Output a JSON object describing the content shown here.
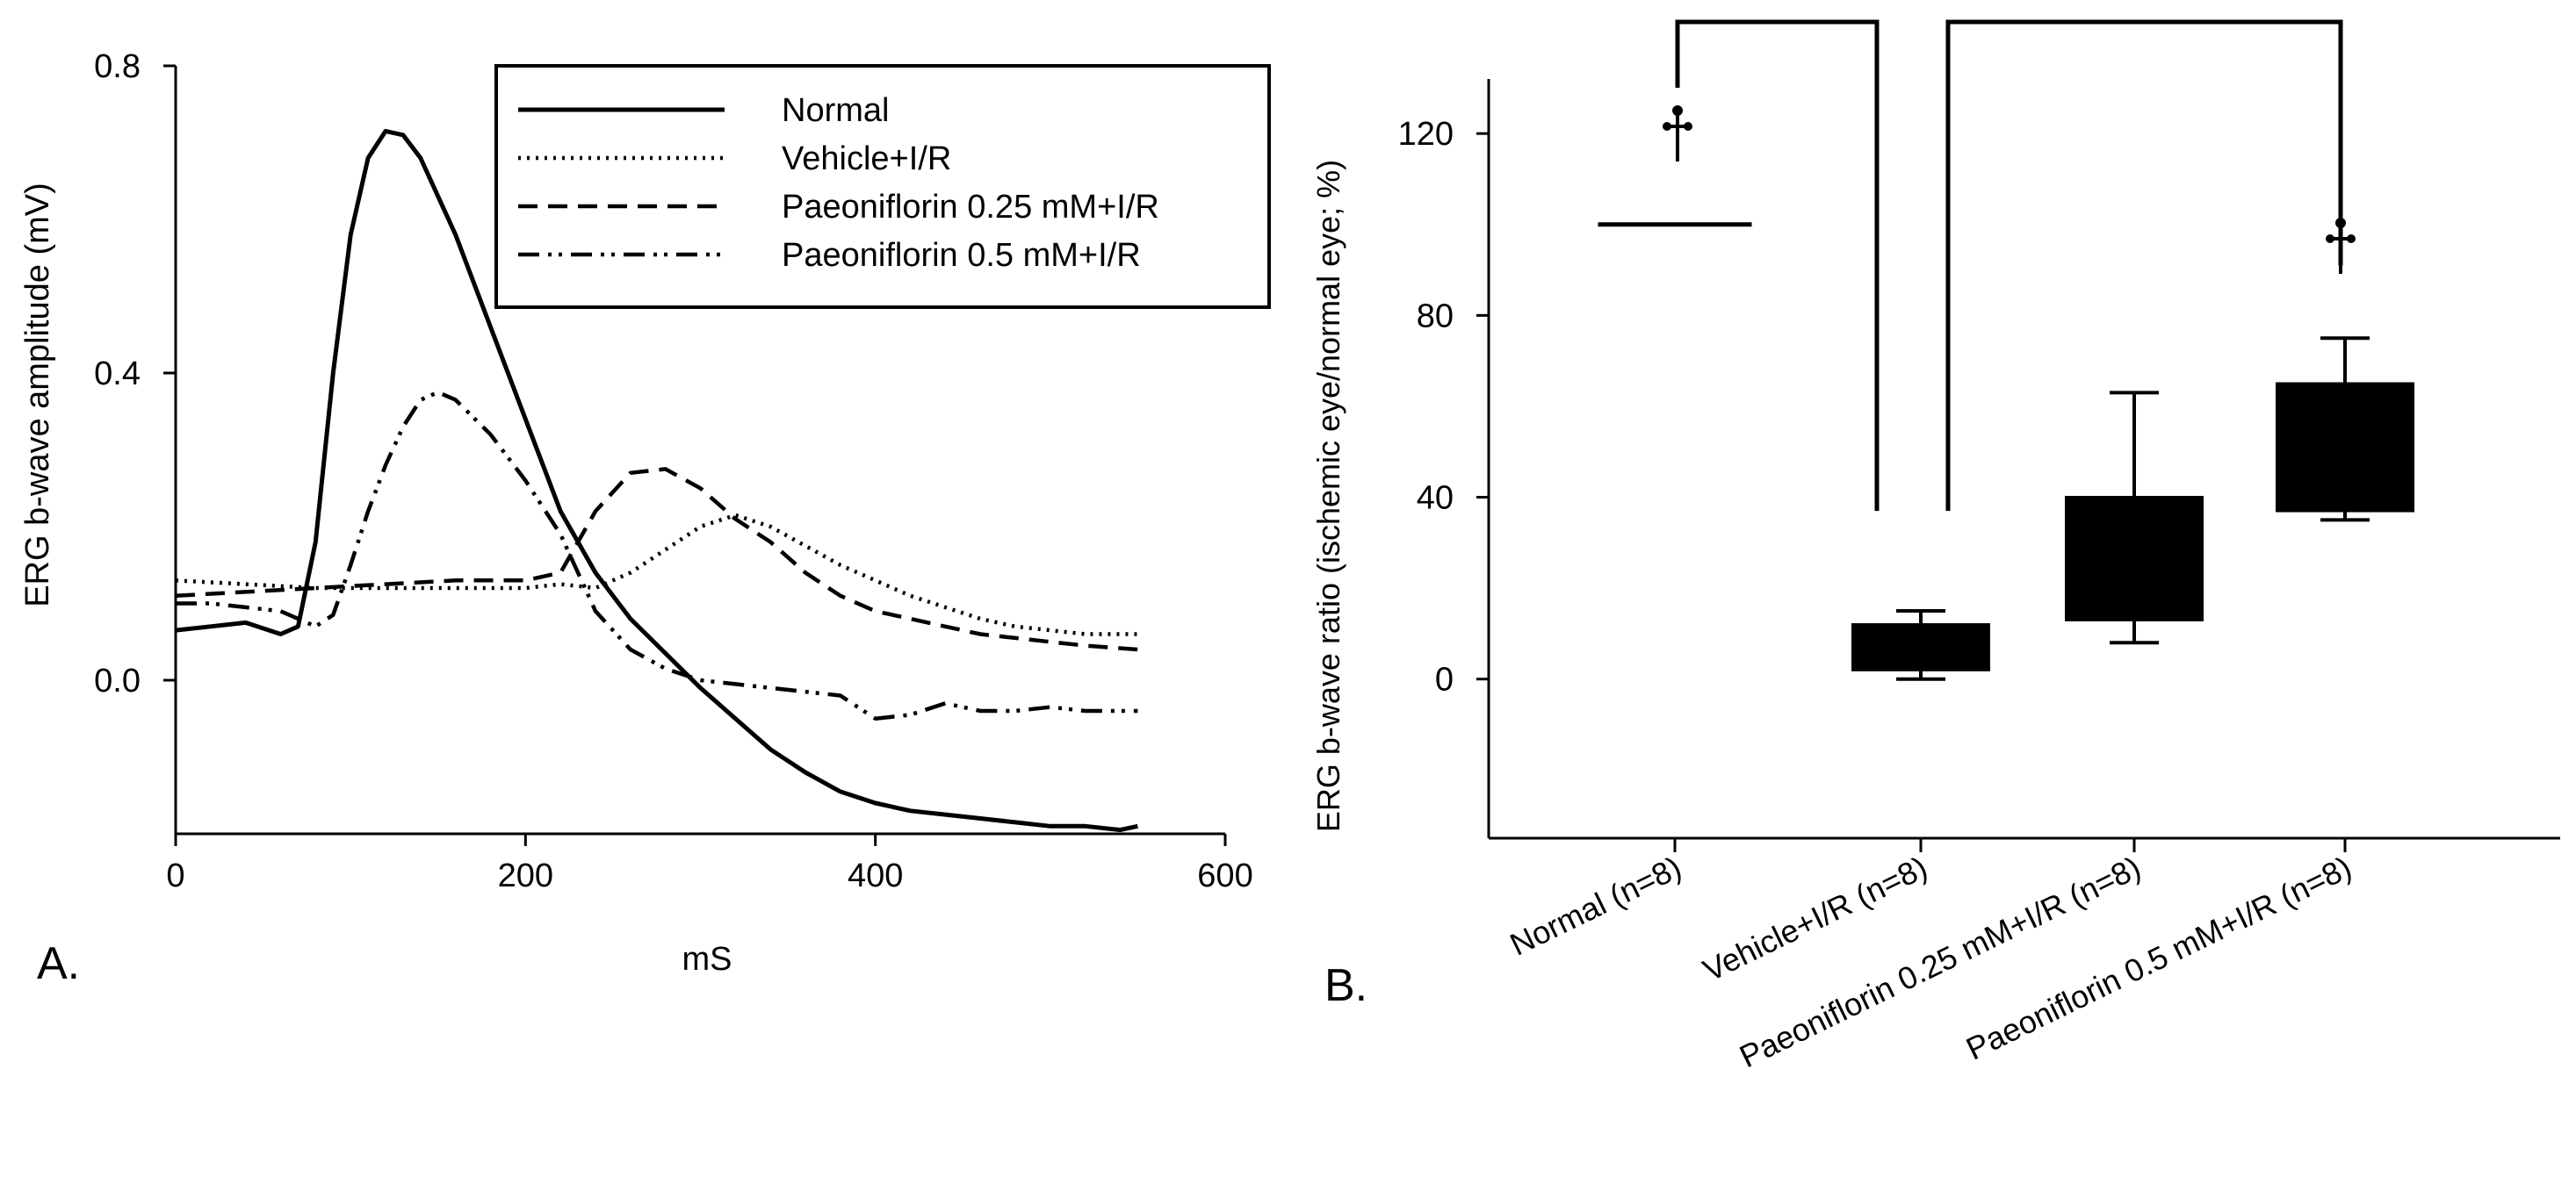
{
  "panels": {
    "a_label": "A.",
    "b_label": "B."
  },
  "chart_data": [
    {
      "type": "line",
      "xlabel": "mS",
      "ylabel": "ERG b-wave amplitude (mV)",
      "xlim": [
        0,
        600
      ],
      "ylim": [
        -0.2,
        0.8
      ],
      "x_ticks": [
        "0",
        "200",
        "400",
        "600"
      ],
      "y_ticks": [
        "0.0",
        "0.4",
        "0.8"
      ],
      "grid": false,
      "legend_position": "top-right",
      "series": [
        {
          "name": "Normal",
          "style": "solid",
          "points": [
            [
              0,
              0.065
            ],
            [
              20,
              0.07
            ],
            [
              40,
              0.075
            ],
            [
              60,
              0.06
            ],
            [
              70,
              0.07
            ],
            [
              80,
              0.18
            ],
            [
              90,
              0.4
            ],
            [
              100,
              0.58
            ],
            [
              110,
              0.68
            ],
            [
              120,
              0.715
            ],
            [
              130,
              0.71
            ],
            [
              140,
              0.68
            ],
            [
              160,
              0.58
            ],
            [
              180,
              0.46
            ],
            [
              200,
              0.34
            ],
            [
              220,
              0.22
            ],
            [
              240,
              0.14
            ],
            [
              260,
              0.08
            ],
            [
              280,
              0.035
            ],
            [
              300,
              -0.01
            ],
            [
              320,
              -0.05
            ],
            [
              340,
              -0.09
            ],
            [
              360,
              -0.12
            ],
            [
              380,
              -0.145
            ],
            [
              400,
              -0.16
            ],
            [
              420,
              -0.17
            ],
            [
              440,
              -0.175
            ],
            [
              460,
              -0.18
            ],
            [
              480,
              -0.185
            ],
            [
              500,
              -0.19
            ],
            [
              520,
              -0.19
            ],
            [
              540,
              -0.195
            ],
            [
              550,
              -0.19
            ]
          ]
        },
        {
          "name": "Vehicle+I/R",
          "style": "dotted",
          "points": [
            [
              0,
              0.13
            ],
            [
              40,
              0.125
            ],
            [
              80,
              0.12
            ],
            [
              120,
              0.12
            ],
            [
              160,
              0.12
            ],
            [
              200,
              0.12
            ],
            [
              220,
              0.125
            ],
            [
              240,
              0.12
            ],
            [
              260,
              0.14
            ],
            [
              280,
              0.17
            ],
            [
              300,
              0.2
            ],
            [
              320,
              0.215
            ],
            [
              340,
              0.2
            ],
            [
              360,
              0.175
            ],
            [
              380,
              0.15
            ],
            [
              400,
              0.13
            ],
            [
              420,
              0.11
            ],
            [
              440,
              0.095
            ],
            [
              460,
              0.08
            ],
            [
              480,
              0.07
            ],
            [
              500,
              0.065
            ],
            [
              520,
              0.06
            ],
            [
              550,
              0.06
            ]
          ]
        },
        {
          "name": "Paeoniflorin 0.25 mM+I/R",
          "style": "dashed",
          "points": [
            [
              0,
              0.11
            ],
            [
              40,
              0.115
            ],
            [
              80,
              0.12
            ],
            [
              120,
              0.125
            ],
            [
              160,
              0.13
            ],
            [
              200,
              0.13
            ],
            [
              220,
              0.14
            ],
            [
              240,
              0.22
            ],
            [
              260,
              0.27
            ],
            [
              280,
              0.275
            ],
            [
              300,
              0.25
            ],
            [
              320,
              0.21
            ],
            [
              340,
              0.18
            ],
            [
              360,
              0.14
            ],
            [
              380,
              0.11
            ],
            [
              400,
              0.09
            ],
            [
              420,
              0.08
            ],
            [
              440,
              0.07
            ],
            [
              460,
              0.06
            ],
            [
              480,
              0.055
            ],
            [
              500,
              0.05
            ],
            [
              520,
              0.045
            ],
            [
              550,
              0.04
            ]
          ]
        },
        {
          "name": "Paeoniflorin 0.5 mM+I/R",
          "style": "dash-dot-dot",
          "points": [
            [
              0,
              0.1
            ],
            [
              20,
              0.1
            ],
            [
              40,
              0.095
            ],
            [
              60,
              0.09
            ],
            [
              80,
              0.07
            ],
            [
              90,
              0.085
            ],
            [
              100,
              0.15
            ],
            [
              110,
              0.22
            ],
            [
              120,
              0.28
            ],
            [
              130,
              0.33
            ],
            [
              140,
              0.365
            ],
            [
              150,
              0.375
            ],
            [
              160,
              0.365
            ],
            [
              180,
              0.32
            ],
            [
              200,
              0.26
            ],
            [
              220,
              0.19
            ],
            [
              240,
              0.09
            ],
            [
              260,
              0.04
            ],
            [
              280,
              0.015
            ],
            [
              300,
              0.0
            ],
            [
              320,
              -0.005
            ],
            [
              340,
              -0.01
            ],
            [
              360,
              -0.015
            ],
            [
              380,
              -0.02
            ],
            [
              400,
              -0.05
            ],
            [
              420,
              -0.045
            ],
            [
              440,
              -0.03
            ],
            [
              460,
              -0.04
            ],
            [
              480,
              -0.04
            ],
            [
              500,
              -0.035
            ],
            [
              520,
              -0.04
            ],
            [
              550,
              -0.04
            ]
          ]
        }
      ]
    },
    {
      "type": "box",
      "ylabel": "ERG b-wave ratio (ischemic eye/normal eye; %)",
      "ylim": [
        -35,
        132
      ],
      "y_ticks": [
        "0",
        "40",
        "80",
        "120"
      ],
      "grid": false,
      "categories": [
        "Normal (n=8)",
        "Vehicle+I/R (n=8)",
        "Paeoniflorin 0.25 mM+I/R (n=8)",
        "Paeoniflorin 0.5 mM+I/R (n=8)"
      ],
      "boxes": [
        {
          "min": 100,
          "q1": 100,
          "q3": 100,
          "max": 100
        },
        {
          "min": 0,
          "q1": 2,
          "q3": 12,
          "max": 15
        },
        {
          "min": 8,
          "q1": 13,
          "q3": 40,
          "max": 63
        },
        {
          "min": 35,
          "q1": 37,
          "q3": 65,
          "max": 75
        }
      ],
      "significance": [
        {
          "symbol": "†",
          "between": [
            0,
            1
          ],
          "marker_on": 0
        },
        {
          "symbol": "†",
          "between": [
            1,
            3
          ],
          "marker_on": 3
        }
      ]
    }
  ]
}
